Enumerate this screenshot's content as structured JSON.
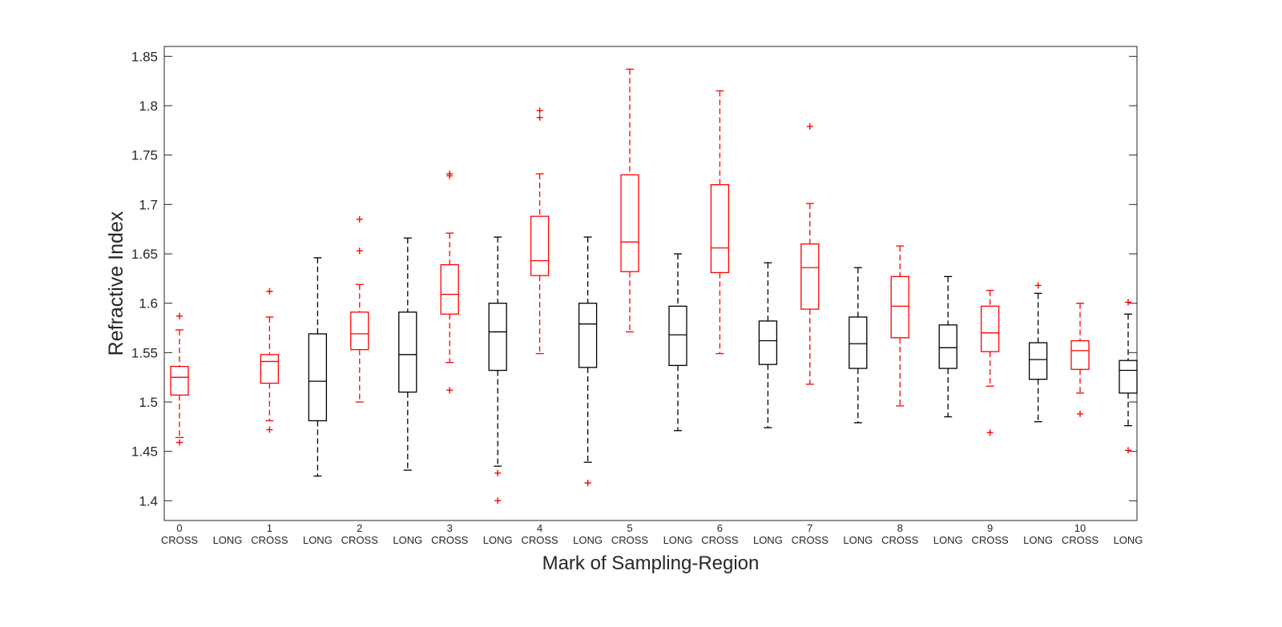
{
  "colors": {
    "cross": "#ff0000",
    "long": "#000000",
    "axis": "#262626"
  },
  "chart_data": {
    "type": "box",
    "title": "",
    "xlabel": "Mark of Sampling-Region",
    "ylabel": "Refractive Index",
    "ylim": [
      1.38,
      1.86
    ],
    "yticks": [
      1.4,
      1.45,
      1.5,
      1.55,
      1.6,
      1.65,
      1.7,
      1.75,
      1.8,
      1.85
    ],
    "ytick_labels": [
      "1.4",
      "1.45",
      "1.5",
      "1.55",
      "1.6",
      "1.65",
      "1.7",
      "1.75",
      "1.8",
      "1.85"
    ],
    "groups": [
      "0",
      "1",
      "2",
      "3",
      "4",
      "5",
      "6",
      "7",
      "8",
      "9",
      "10"
    ],
    "series_labels": [
      "CROSS",
      "LONG"
    ],
    "grid": false,
    "boxes": [
      {
        "group": "0",
        "series": "CROSS",
        "whisker_low": 1.464,
        "q1": 1.507,
        "median": 1.525,
        "q3": 1.536,
        "whisker_high": 1.573,
        "outliers": [
          1.459,
          1.587
        ]
      },
      {
        "group": "1",
        "series": "CROSS",
        "whisker_low": 1.481,
        "q1": 1.519,
        "median": 1.541,
        "q3": 1.548,
        "whisker_high": 1.586,
        "outliers": [
          1.472,
          1.612
        ]
      },
      {
        "group": "1",
        "series": "LONG",
        "whisker_low": 1.425,
        "q1": 1.481,
        "median": 1.521,
        "q3": 1.569,
        "whisker_high": 1.646,
        "outliers": []
      },
      {
        "group": "2",
        "series": "CROSS",
        "whisker_low": 1.5,
        "q1": 1.553,
        "median": 1.569,
        "q3": 1.591,
        "whisker_high": 1.619,
        "outliers": [
          1.653,
          1.685
        ]
      },
      {
        "group": "2",
        "series": "LONG",
        "whisker_low": 1.431,
        "q1": 1.51,
        "median": 1.548,
        "q3": 1.591,
        "whisker_high": 1.666,
        "outliers": []
      },
      {
        "group": "3",
        "series": "CROSS",
        "whisker_low": 1.54,
        "q1": 1.589,
        "median": 1.609,
        "q3": 1.639,
        "whisker_high": 1.671,
        "outliers": [
          1.512,
          1.729,
          1.731
        ]
      },
      {
        "group": "3",
        "series": "LONG",
        "whisker_low": 1.435,
        "q1": 1.532,
        "median": 1.571,
        "q3": 1.6,
        "whisker_high": 1.667,
        "outliers": [
          1.4,
          1.428
        ]
      },
      {
        "group": "4",
        "series": "CROSS",
        "whisker_low": 1.549,
        "q1": 1.628,
        "median": 1.643,
        "q3": 1.688,
        "whisker_high": 1.731,
        "outliers": [
          1.788,
          1.795
        ]
      },
      {
        "group": "4",
        "series": "LONG",
        "whisker_low": 1.439,
        "q1": 1.535,
        "median": 1.579,
        "q3": 1.6,
        "whisker_high": 1.667,
        "outliers": [
          1.418
        ]
      },
      {
        "group": "5",
        "series": "CROSS",
        "whisker_low": 1.571,
        "q1": 1.632,
        "median": 1.662,
        "q3": 1.73,
        "whisker_high": 1.837,
        "outliers": []
      },
      {
        "group": "5",
        "series": "LONG",
        "whisker_low": 1.471,
        "q1": 1.537,
        "median": 1.568,
        "q3": 1.597,
        "whisker_high": 1.65,
        "outliers": []
      },
      {
        "group": "6",
        "series": "CROSS",
        "whisker_low": 1.549,
        "q1": 1.631,
        "median": 1.656,
        "q3": 1.72,
        "whisker_high": 1.815,
        "outliers": []
      },
      {
        "group": "6",
        "series": "LONG",
        "whisker_low": 1.474,
        "q1": 1.538,
        "median": 1.562,
        "q3": 1.582,
        "whisker_high": 1.641,
        "outliers": []
      },
      {
        "group": "7",
        "series": "CROSS",
        "whisker_low": 1.518,
        "q1": 1.594,
        "median": 1.636,
        "q3": 1.66,
        "whisker_high": 1.701,
        "outliers": [
          1.779
        ]
      },
      {
        "group": "7",
        "series": "LONG",
        "whisker_low": 1.479,
        "q1": 1.534,
        "median": 1.559,
        "q3": 1.586,
        "whisker_high": 1.636,
        "outliers": []
      },
      {
        "group": "8",
        "series": "CROSS",
        "whisker_low": 1.496,
        "q1": 1.565,
        "median": 1.597,
        "q3": 1.627,
        "whisker_high": 1.658,
        "outliers": []
      },
      {
        "group": "8",
        "series": "LONG",
        "whisker_low": 1.485,
        "q1": 1.534,
        "median": 1.555,
        "q3": 1.578,
        "whisker_high": 1.627,
        "outliers": []
      },
      {
        "group": "9",
        "series": "CROSS",
        "whisker_low": 1.516,
        "q1": 1.551,
        "median": 1.57,
        "q3": 1.597,
        "whisker_high": 1.613,
        "outliers": [
          1.469
        ]
      },
      {
        "group": "9",
        "series": "LONG",
        "whisker_low": 1.48,
        "q1": 1.523,
        "median": 1.543,
        "q3": 1.56,
        "whisker_high": 1.61,
        "outliers": [
          1.618
        ]
      },
      {
        "group": "10",
        "series": "CROSS",
        "whisker_low": 1.509,
        "q1": 1.533,
        "median": 1.552,
        "q3": 1.562,
        "whisker_high": 1.6,
        "outliers": [
          1.488
        ]
      },
      {
        "group": "10",
        "series": "LONG",
        "whisker_low": 1.476,
        "q1": 1.509,
        "median": 1.532,
        "q3": 1.542,
        "whisker_high": 1.589,
        "outliers": [
          1.451,
          1.601
        ]
      }
    ]
  }
}
